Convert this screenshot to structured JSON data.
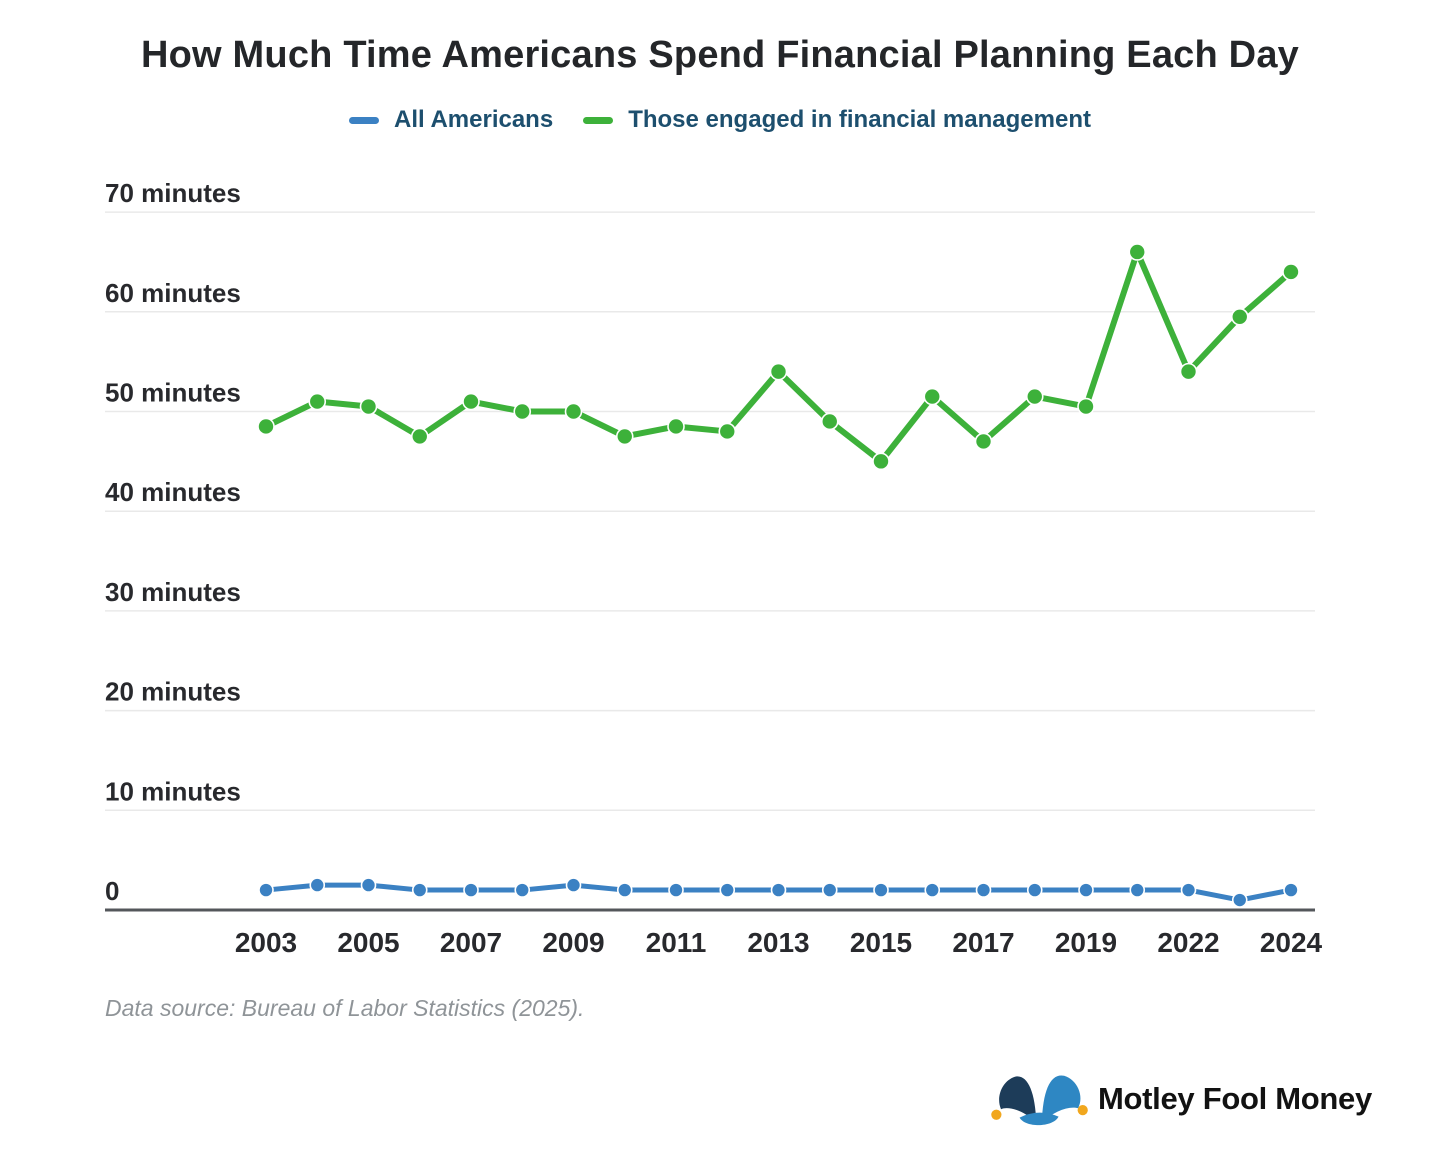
{
  "title": "How Much Time Americans Spend Financial Planning Each Day",
  "chart_data": {
    "type": "line",
    "title": "How Much Time Americans Spend Financial Planning Each Day",
    "x": [
      2003,
      2004,
      2005,
      2006,
      2007,
      2008,
      2009,
      2010,
      2011,
      2012,
      2013,
      2014,
      2015,
      2016,
      2017,
      2018,
      2019,
      2021,
      2022,
      2023,
      2024
    ],
    "series": [
      {
        "name": "All Americans",
        "color": "#3b81c3",
        "values": [
          2,
          2.5,
          2.5,
          2,
          2,
          2,
          2.5,
          2,
          2,
          2,
          2,
          2,
          2,
          2,
          2,
          2,
          2,
          2,
          2,
          1,
          2
        ]
      },
      {
        "name": "Those engaged in financial management",
        "color": "#3db13a",
        "values": [
          48.5,
          51,
          50.5,
          47.5,
          51,
          50,
          50,
          47.5,
          48.5,
          48,
          54,
          49,
          45,
          51.5,
          47,
          51.5,
          50.5,
          66,
          54,
          59.5,
          64
        ]
      }
    ],
    "xlabel": "",
    "ylabel": "minutes",
    "ylim": [
      0,
      70
    ],
    "grid": "horizontal",
    "legend_position": "top",
    "y_ticks": [
      {
        "value": 70,
        "label": "70 minutes"
      },
      {
        "value": 60,
        "label": "60 minutes"
      },
      {
        "value": 50,
        "label": "50 minutes"
      },
      {
        "value": 40,
        "label": "40 minutes"
      },
      {
        "value": 30,
        "label": "30 minutes"
      },
      {
        "value": 20,
        "label": "20 minutes"
      },
      {
        "value": 10,
        "label": "10 minutes"
      },
      {
        "value": 0,
        "label": "0"
      }
    ],
    "x_ticks": [
      {
        "index": 0,
        "label": "2003"
      },
      {
        "index": 2,
        "label": "2005"
      },
      {
        "index": 4,
        "label": "2007"
      },
      {
        "index": 6,
        "label": "2009"
      },
      {
        "index": 8,
        "label": "2011"
      },
      {
        "index": 10,
        "label": "2013"
      },
      {
        "index": 12,
        "label": "2015"
      },
      {
        "index": 14,
        "label": "2017"
      },
      {
        "index": 16,
        "label": "2019"
      },
      {
        "index": 18,
        "label": "2022"
      },
      {
        "index": 20,
        "label": "2024"
      }
    ]
  },
  "source": {
    "text": "Data source: Bureau of Labor Statistics (2025)."
  },
  "logo": {
    "text": "Motley Fool Money",
    "hat_left_color": "#1d3c59",
    "hat_right_color": "#2e87c3",
    "bell_color": "#f1a71e"
  },
  "colors": {
    "title_text": "#242629",
    "legend_text": "#1d4f6e",
    "axis_label_text": "#28292d",
    "gridline": "#e9e9e9",
    "axis_line": "#54575b",
    "source_text": "#8f9498",
    "background": "#ffffff"
  }
}
